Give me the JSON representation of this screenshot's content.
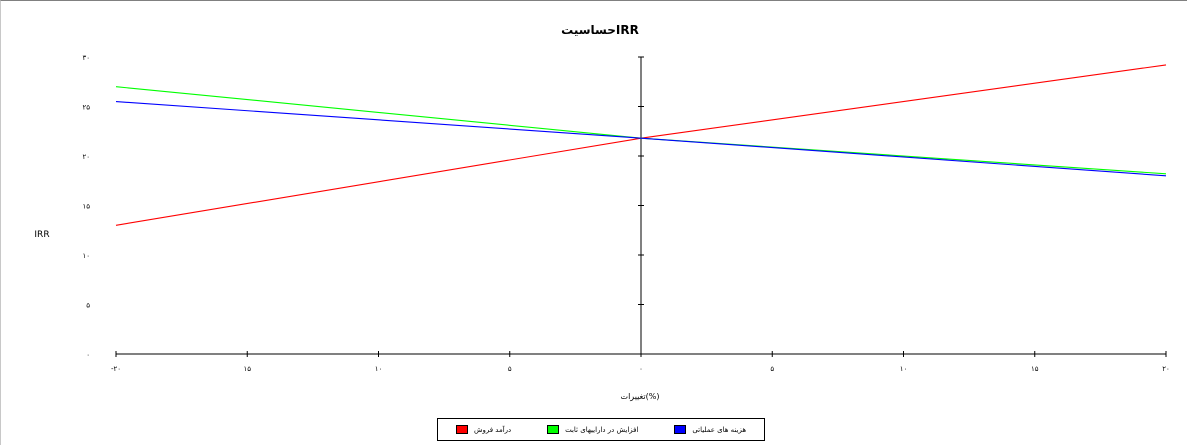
{
  "chart_data": {
    "type": "line",
    "title": "حساسیتIRR",
    "xlabel": "تغییرات(%)",
    "ylabel": "IRR",
    "x": [
      -20,
      0,
      20
    ],
    "x_tick_labels": [
      "-۲۰",
      "۱۵",
      "۱۰",
      "۵",
      "۰",
      "۵",
      "۱۰",
      "۱۵",
      "۲۰"
    ],
    "x_tick_values": [
      -20,
      -15,
      -10,
      -5,
      0,
      5,
      10,
      15,
      20
    ],
    "y_tick_labels": [
      "۰",
      "۵",
      "۱۰",
      "۱۵",
      "۲۰",
      "۲۵",
      "۳۰"
    ],
    "y_tick_values": [
      0,
      5,
      10,
      15,
      20,
      25,
      30
    ],
    "xlim": [
      -20,
      20
    ],
    "ylim": [
      0,
      30
    ],
    "grid": false,
    "legend_position": "bottom",
    "series": [
      {
        "name": "درآمد فروش",
        "color": "#ff0000",
        "values": [
          13.0,
          21.8,
          29.2
        ]
      },
      {
        "name": "افزایش در داراییهای ثابت",
        "color": "#00ff00",
        "values": [
          27.0,
          21.8,
          18.2
        ]
      },
      {
        "name": "هزینه های عملیاتی",
        "color": "#0000ff",
        "values": [
          25.5,
          21.8,
          18.0
        ]
      }
    ]
  }
}
